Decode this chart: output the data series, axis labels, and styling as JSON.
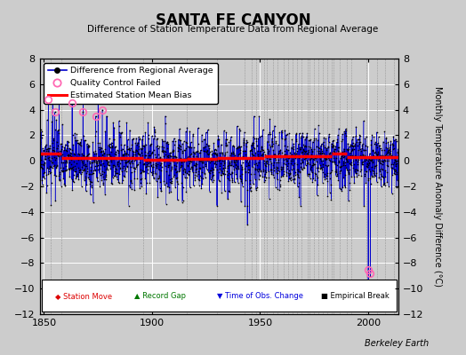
{
  "title": "SANTA FE CANYON",
  "subtitle": "Difference of Station Temperature Data from Regional Average",
  "ylabel": "Monthly Temperature Anomaly Difference (°C)",
  "xlabel_ticks": [
    1850,
    1900,
    1950,
    2000
  ],
  "ylim": [
    -12,
    8
  ],
  "yticks": [
    -12,
    -10,
    -8,
    -6,
    -4,
    -2,
    0,
    2,
    4,
    6,
    8
  ],
  "xlim": [
    1848,
    2014
  ],
  "random_seed": 17,
  "station_moves": [
    1853,
    1943,
    1953,
    1956,
    1958,
    1961,
    1963,
    1965,
    1967,
    1969,
    1972,
    1973,
    1975,
    1977,
    1979,
    1981,
    1983,
    1992,
    1999,
    2004,
    2008,
    2012
  ],
  "record_gaps": [
    1858,
    1896
  ],
  "obs_changes": [
    1948,
    1952,
    1958,
    1961,
    1984,
    1987
  ],
  "emp_breaks": [
    1896,
    1916,
    1930,
    1946,
    1952,
    1983,
    1990
  ],
  "bias_segments": [
    {
      "x": [
        1848,
        1858
      ],
      "y": [
        0.55,
        0.55
      ]
    },
    {
      "x": [
        1858,
        1896
      ],
      "y": [
        0.25,
        0.25
      ]
    },
    {
      "x": [
        1896,
        1916
      ],
      "y": [
        0.1,
        0.1
      ]
    },
    {
      "x": [
        1916,
        1930
      ],
      "y": [
        0.15,
        0.15
      ]
    },
    {
      "x": [
        1930,
        1946
      ],
      "y": [
        0.2,
        0.2
      ]
    },
    {
      "x": [
        1946,
        1952
      ],
      "y": [
        0.25,
        0.25
      ]
    },
    {
      "x": [
        1952,
        1983
      ],
      "y": [
        0.35,
        0.35
      ]
    },
    {
      "x": [
        1983,
        1990
      ],
      "y": [
        0.55,
        0.55
      ]
    },
    {
      "x": [
        1990,
        2014
      ],
      "y": [
        0.3,
        0.3
      ]
    }
  ],
  "qc_fail_approx": [
    [
      1852,
      4.8
    ],
    [
      1855,
      3.8
    ],
    [
      1863,
      4.5
    ],
    [
      1868,
      3.8
    ],
    [
      1874,
      3.5
    ],
    [
      1877,
      4.0
    ],
    [
      2000,
      -8.5
    ],
    [
      2001,
      -8.8
    ]
  ],
  "tall_spikes_up": [
    [
      1854,
      5.2
    ],
    [
      1857,
      4.5
    ],
    [
      1863,
      4.8
    ],
    [
      1868,
      4.5
    ],
    [
      1875,
      4.8
    ],
    [
      1879,
      3.5
    ],
    [
      1882,
      3.0
    ]
  ],
  "tall_spikes_down": [
    [
      1930,
      -3.5
    ],
    [
      1935,
      -3.0
    ],
    [
      1943,
      -3.5
    ],
    [
      1944,
      -5.0
    ],
    [
      1945,
      -4.0
    ],
    [
      1998,
      -3.5
    ],
    [
      2000,
      -9.5
    ],
    [
      2001,
      -9.0
    ]
  ],
  "colors": {
    "diff_line": "#0000cc",
    "diff_marker": "#000000",
    "qc_fail": "#ff69b4",
    "bias": "#ff0000",
    "station_move": "#dd0000",
    "record_gap": "#007700",
    "obs_change": "#0000dd",
    "emp_break": "#000000",
    "bg": "#cccccc",
    "plot_bg": "#cccccc",
    "grid": "#ffffff"
  }
}
